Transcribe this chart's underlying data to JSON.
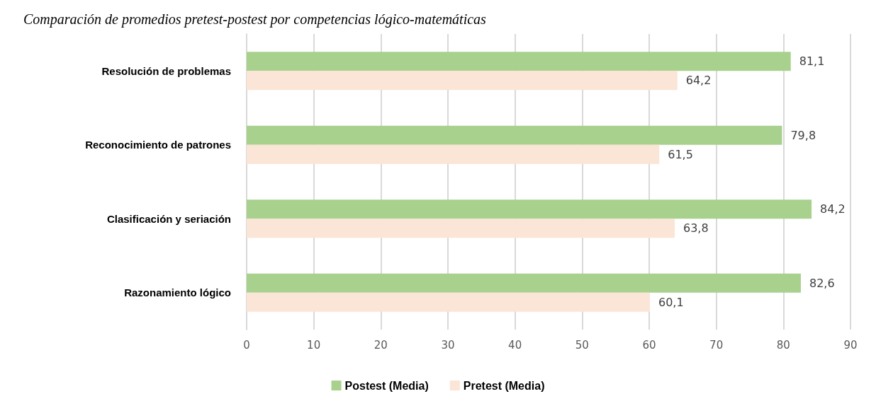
{
  "chart_data": {
    "type": "bar",
    "orientation": "horizontal",
    "title": "Comparación de promedios pretest-postest por competencias lógico-matemáticas",
    "categories": [
      "Resolución de problemas",
      "Reconocimiento de patrones",
      "Clasificación y seriación",
      "Razonamiento lógico"
    ],
    "series": [
      {
        "name": "Postest (Media)",
        "color": "#a9d18e",
        "values": [
          81.1,
          79.8,
          84.2,
          82.6
        ],
        "value_labels": [
          "81,1",
          "79,8",
          "84,2",
          "82,6"
        ]
      },
      {
        "name": "Pretest (Media)",
        "color": "#fbe5d6",
        "values": [
          64.2,
          61.5,
          63.8,
          60.1
        ],
        "value_labels": [
          "64,2",
          "61,5",
          "63,8",
          "60,1"
        ]
      }
    ],
    "xlim": [
      0,
      90
    ],
    "xticks": [
      0,
      10,
      20,
      30,
      40,
      50,
      60,
      70,
      80,
      90
    ],
    "grid": "x",
    "legend": "bottom"
  }
}
